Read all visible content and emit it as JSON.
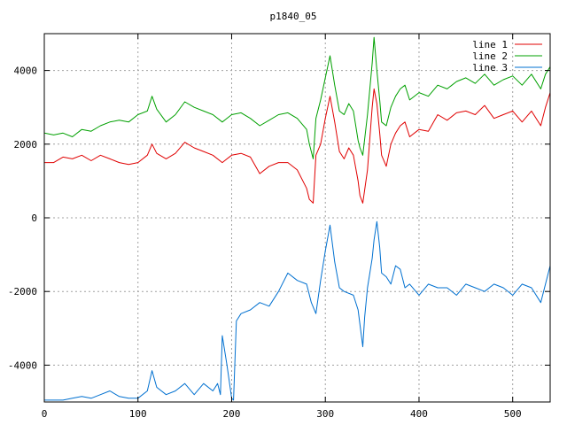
{
  "chart_data": {
    "type": "line",
    "title": "p1840_05",
    "xlabel": "",
    "ylabel": "",
    "xlim": [
      0,
      540
    ],
    "ylim": [
      -5000,
      5000
    ],
    "grid": true,
    "legend_position": "top-right",
    "x_ticks": [
      0,
      100,
      200,
      300,
      400,
      500
    ],
    "y_ticks": [
      -4000,
      -2000,
      0,
      2000,
      4000
    ],
    "x_tick_labels": [
      "0",
      "100",
      "200",
      "300",
      "400",
      "500"
    ],
    "y_tick_labels": [
      "-4000",
      "-2000",
      "0",
      "2000",
      "4000"
    ],
    "series": [
      {
        "name": "line 1",
        "color": "#e00000",
        "x": [
          0,
          10,
          20,
          30,
          40,
          50,
          60,
          70,
          80,
          90,
          100,
          110,
          115,
          120,
          130,
          140,
          150,
          160,
          170,
          180,
          190,
          200,
          210,
          220,
          230,
          240,
          250,
          260,
          270,
          280,
          283,
          287,
          290,
          295,
          300,
          305,
          310,
          315,
          320,
          325,
          330,
          335,
          337,
          340,
          345,
          350,
          352,
          355,
          358,
          360,
          365,
          370,
          375,
          380,
          385,
          390,
          400,
          410,
          420,
          430,
          440,
          450,
          460,
          470,
          480,
          490,
          500,
          510,
          520,
          530,
          535,
          540
        ],
        "y": [
          1500,
          1500,
          1650,
          1600,
          1700,
          1550,
          1700,
          1600,
          1500,
          1450,
          1500,
          1700,
          2000,
          1750,
          1600,
          1750,
          2050,
          1900,
          1800,
          1700,
          1500,
          1700,
          1750,
          1650,
          1200,
          1400,
          1500,
          1500,
          1300,
          800,
          500,
          400,
          1700,
          2000,
          2700,
          3300,
          2600,
          1800,
          1600,
          1900,
          1700,
          1000,
          600,
          400,
          1300,
          3000,
          3500,
          3100,
          2300,
          1700,
          1400,
          2000,
          2300,
          2500,
          2600,
          2200,
          2400,
          2350,
          2800,
          2650,
          2850,
          2900,
          2800,
          3050,
          2700,
          2800,
          2900,
          2600,
          2900,
          2500,
          3000,
          3400
        ]
      },
      {
        "name": "line 2",
        "color": "#00a000",
        "x": [
          0,
          10,
          20,
          30,
          40,
          50,
          60,
          70,
          80,
          90,
          100,
          110,
          115,
          120,
          130,
          140,
          150,
          160,
          170,
          180,
          190,
          200,
          210,
          220,
          230,
          240,
          250,
          260,
          270,
          280,
          283,
          287,
          290,
          295,
          300,
          305,
          310,
          315,
          320,
          325,
          330,
          335,
          337,
          340,
          345,
          350,
          352,
          355,
          358,
          360,
          365,
          370,
          375,
          380,
          385,
          390,
          400,
          410,
          420,
          430,
          440,
          450,
          460,
          470,
          480,
          490,
          500,
          510,
          520,
          530,
          535,
          540
        ],
        "y": [
          2300,
          2250,
          2300,
          2200,
          2400,
          2350,
          2500,
          2600,
          2650,
          2600,
          2800,
          2900,
          3300,
          2950,
          2600,
          2800,
          3150,
          3000,
          2900,
          2800,
          2600,
          2800,
          2850,
          2700,
          2500,
          2650,
          2800,
          2850,
          2700,
          2400,
          2000,
          1600,
          2700,
          3200,
          3800,
          4400,
          3600,
          2900,
          2800,
          3100,
          2900,
          2100,
          1900,
          1700,
          2800,
          4200,
          4900,
          4000,
          3200,
          2600,
          2500,
          3000,
          3300,
          3500,
          3600,
          3200,
          3400,
          3300,
          3600,
          3500,
          3700,
          3800,
          3650,
          3900,
          3600,
          3750,
          3850,
          3600,
          3900,
          3500,
          3900,
          4100
        ]
      },
      {
        "name": "line 3",
        "color": "#0070d0",
        "x": [
          0,
          10,
          20,
          30,
          40,
          50,
          60,
          70,
          80,
          90,
          100,
          110,
          115,
          120,
          130,
          140,
          150,
          160,
          170,
          180,
          185,
          188,
          190,
          195,
          200,
          202,
          205,
          210,
          220,
          230,
          240,
          250,
          260,
          270,
          280,
          285,
          290,
          295,
          300,
          305,
          310,
          315,
          320,
          330,
          335,
          340,
          342,
          345,
          350,
          352,
          355,
          358,
          360,
          365,
          370,
          375,
          380,
          385,
          390,
          400,
          410,
          420,
          430,
          440,
          450,
          460,
          470,
          480,
          490,
          500,
          510,
          520,
          530,
          535,
          540
        ],
        "y": [
          -4950,
          -4950,
          -4950,
          -4900,
          -4850,
          -4900,
          -4800,
          -4700,
          -4850,
          -4900,
          -4900,
          -4700,
          -4150,
          -4600,
          -4800,
          -4700,
          -4500,
          -4800,
          -4500,
          -4700,
          -4500,
          -4800,
          -3200,
          -4000,
          -4900,
          -4950,
          -2800,
          -2600,
          -2500,
          -2300,
          -2400,
          -2000,
          -1500,
          -1700,
          -1800,
          -2300,
          -2600,
          -1700,
          -900,
          -200,
          -1200,
          -1900,
          -2000,
          -2100,
          -2500,
          -3500,
          -2700,
          -1900,
          -1100,
          -600,
          -100,
          -800,
          -1500,
          -1600,
          -1800,
          -1300,
          -1400,
          -1900,
          -1800,
          -2100,
          -1800,
          -1900,
          -1900,
          -2100,
          -1800,
          -1900,
          -2000,
          -1800,
          -1900,
          -2100,
          -1800,
          -1900,
          -2300,
          -1800,
          -1300
        ]
      }
    ]
  }
}
